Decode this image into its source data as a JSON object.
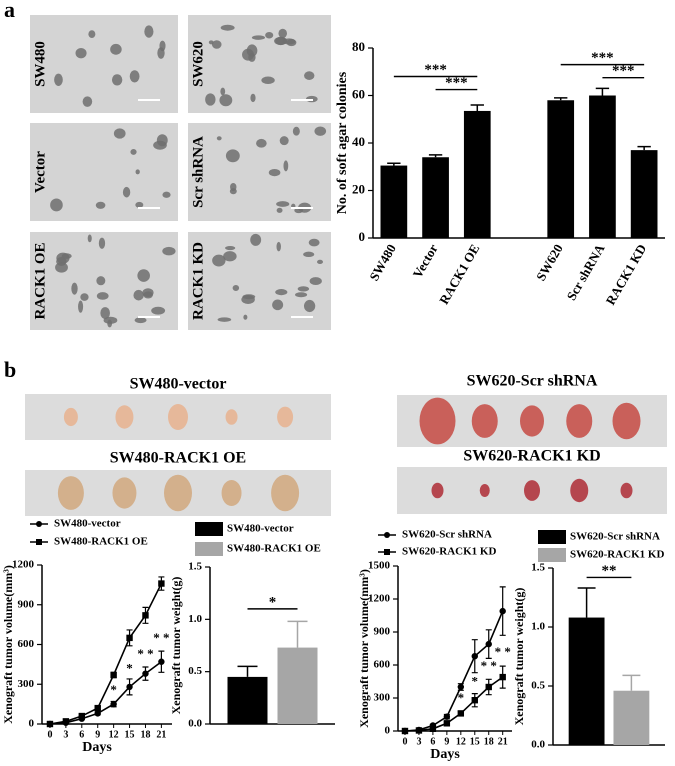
{
  "panel_labels": [
    "a",
    "b"
  ],
  "micrographs": [
    "SW480",
    "SW620",
    "Vector",
    "Scr shRNA",
    "RACK1 OE",
    "RACK1 KD"
  ],
  "tumor_photos": [
    "SW480-vector",
    "SW480-RACK1 OE",
    "SW620-Scr shRNA",
    "SW620-RACK1 KD"
  ],
  "chart_data": [
    {
      "type": "bar",
      "ylabel": "No. of soft agar colonies",
      "categories": [
        "SW480",
        "Vector",
        "RACK1 OE",
        null,
        "SW620",
        "Scr shRNA",
        "RACK1 KD"
      ],
      "series": [
        {
          "color": "#000000",
          "values": [
            30.5,
            34,
            53.5,
            null,
            58,
            60,
            37
          ],
          "errors": [
            1,
            1,
            2.5,
            null,
            1,
            3,
            1.5
          ]
        }
      ],
      "ylim": [
        0,
        80
      ],
      "yticks": [
        0,
        20,
        40,
        60,
        80
      ],
      "annotations": [
        "***",
        "***",
        "***",
        "***"
      ]
    },
    {
      "type": "line",
      "xlabel": "Days",
      "ylabel": "Xenograft tumor volume(mm³)",
      "x": [
        0,
        3,
        6,
        9,
        12,
        15,
        18,
        21
      ],
      "xlim": [
        -1.5,
        23
      ],
      "xticks": [
        0,
        3,
        6,
        9,
        12,
        15,
        18,
        21
      ],
      "ylim": [
        0,
        1200
      ],
      "yticks": [
        0,
        300,
        600,
        900,
        1200
      ],
      "series": [
        {
          "name": "SW480-vector",
          "color": "#000000",
          "marker": "circle",
          "values": [
            0,
            10,
            40,
            80,
            150,
            280,
            380,
            470
          ],
          "errors": [
            0,
            0,
            5,
            10,
            20,
            60,
            50,
            80
          ]
        },
        {
          "name": "SW480-RACK1 OE",
          "color": "#000000",
          "marker": "square",
          "values": [
            0,
            20,
            60,
            120,
            370,
            650,
            820,
            1060
          ],
          "errors": [
            0,
            0,
            5,
            10,
            20,
            60,
            60,
            50
          ]
        }
      ],
      "annotations": [
        "*",
        "*",
        "* *",
        "* *"
      ]
    },
    {
      "type": "bar",
      "ylabel": "Xenograft tumor weight(g)",
      "categories": [
        null
      ],
      "series": [
        {
          "name": "SW480-vector",
          "color": "#000000",
          "values": [
            0.45
          ],
          "errors": [
            0.1
          ]
        },
        {
          "name": "SW480-RACK1 OE",
          "color": "#a6a6a6",
          "values": [
            0.73
          ],
          "errors": [
            0.25
          ]
        }
      ],
      "ylim": [
        0,
        1.5
      ],
      "yticks": [
        {
          "value": 0,
          "label": "0.0"
        },
        0.5,
        {
          "value": 1,
          "label": "1.0"
        },
        1.5
      ],
      "annotations": [
        "*"
      ]
    },
    {
      "type": "line",
      "xlabel": "Days",
      "ylabel": "Xenograft tumor volume(mm³)",
      "x": [
        0,
        3,
        6,
        9,
        12,
        15,
        18,
        21
      ],
      "xlim": [
        -1.5,
        23
      ],
      "xticks": [
        0,
        3,
        6,
        9,
        12,
        15,
        18,
        21
      ],
      "ylim": [
        0,
        1500
      ],
      "yticks": [
        0,
        300,
        600,
        900,
        1200,
        1500
      ],
      "series": [
        {
          "name": "SW620-Scr shRNA",
          "color": "#000000",
          "marker": "circle",
          "values": [
            0,
            10,
            50,
            130,
            400,
            680,
            790,
            1090
          ],
          "errors": [
            0,
            0,
            10,
            20,
            30,
            150,
            130,
            220
          ]
        },
        {
          "name": "SW620-RACK1 KD",
          "color": "#000000",
          "marker": "square",
          "values": [
            0,
            5,
            20,
            70,
            160,
            280,
            400,
            490
          ],
          "errors": [
            0,
            0,
            5,
            15,
            20,
            60,
            70,
            100
          ]
        }
      ],
      "annotations": [
        "*",
        "*",
        "* *",
        "* *"
      ]
    },
    {
      "type": "bar",
      "ylabel": "Xenograft tumor weight(g)",
      "categories": [
        null
      ],
      "series": [
        {
          "name": "SW620-Scr shRNA",
          "color": "#000000",
          "values": [
            1.08
          ],
          "errors": [
            0.25
          ]
        },
        {
          "name": "SW620-RACK1 KD",
          "color": "#a6a6a6",
          "values": [
            0.46
          ],
          "errors": [
            0.13
          ]
        }
      ],
      "ylim": [
        0,
        1.5
      ],
      "yticks": [
        {
          "value": 0,
          "label": "0.0"
        },
        0.5,
        {
          "value": 1,
          "label": "1.0"
        },
        1.5
      ],
      "annotations": [
        "**"
      ]
    }
  ]
}
